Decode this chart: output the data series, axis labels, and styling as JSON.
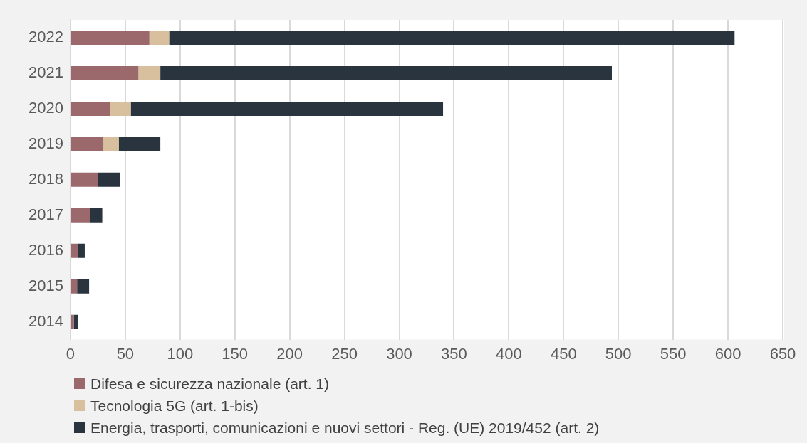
{
  "chart_data": {
    "type": "bar",
    "orientation": "horizontal",
    "stacked": true,
    "categories": [
      "2022",
      "2021",
      "2020",
      "2019",
      "2018",
      "2017",
      "2016",
      "2015",
      "2014"
    ],
    "series": [
      {
        "name": "Difesa e sicurezza nazionale (art. 1)",
        "color": "#9b686b",
        "values": [
          72,
          62,
          36,
          30,
          25,
          18,
          7,
          6,
          3
        ]
      },
      {
        "name": "Tecnologia 5G (art. 1-bis)",
        "color": "#d8c09e",
        "values": [
          18,
          20,
          19,
          14,
          0,
          0,
          0,
          0,
          0
        ]
      },
      {
        "name": "Energia, trasporti, comunicazioni e nuovi settori - Reg. (UE) 2019/452 (art. 2)",
        "color": "#29343e",
        "values": [
          516,
          412,
          285,
          38,
          20,
          11,
          6,
          11,
          4
        ]
      }
    ],
    "xlim": [
      0,
      650
    ],
    "xticks": [
      0,
      50,
      100,
      150,
      200,
      250,
      300,
      350,
      400,
      450,
      500,
      550,
      600,
      650
    ],
    "grid": "x",
    "legend": "bottom"
  }
}
